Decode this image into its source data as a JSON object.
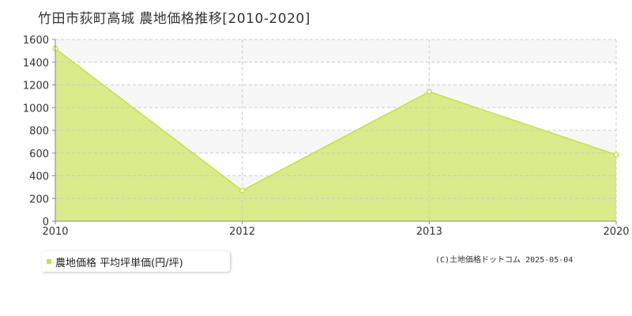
{
  "chart_data": {
    "type": "area",
    "title": "竹田市荻町高城 農地価格推移[2010-2020]",
    "x": [
      "2010",
      "2012",
      "2013",
      "2020"
    ],
    "series": [
      {
        "name": "農地価格 平均坪単価(円/坪)",
        "values": [
          1520,
          270,
          1140,
          585
        ]
      }
    ],
    "ylim": [
      0,
      1600
    ],
    "yticks": [
      0,
      200,
      400,
      600,
      800,
      1000,
      1200,
      1400,
      1600
    ],
    "legend_position": "bottom-left",
    "grid": true,
    "source": "(C)土地価格ドットコム 2025-05-04"
  },
  "colors": {
    "fill": "#d9eb8a",
    "line": "#c5e04a",
    "band": "#f7f7f7",
    "grid": "#cccccc",
    "axis": "#888888"
  }
}
